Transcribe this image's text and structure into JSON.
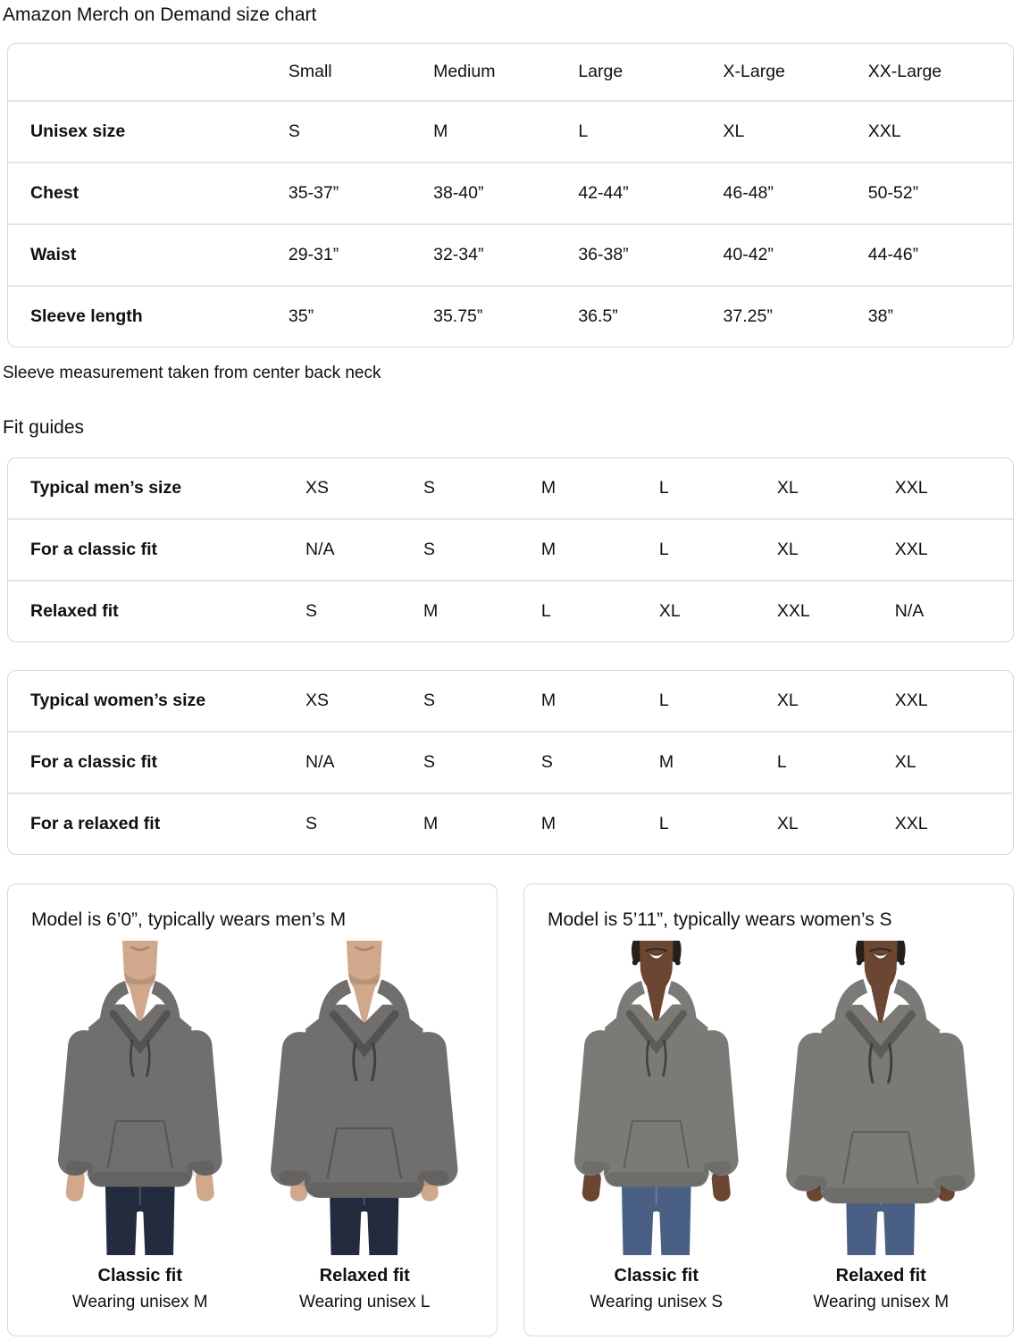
{
  "page_title": "Amazon Merch on Demand size chart",
  "size_chart": {
    "columns": [
      "Small",
      "Medium",
      "Large",
      "X-Large",
      "XX-Large"
    ],
    "rows": [
      {
        "label": "Unisex size",
        "values": [
          "S",
          "M",
          "L",
          "XL",
          "XXL"
        ]
      },
      {
        "label": "Chest",
        "values": [
          "35-37”",
          "38-40”",
          "42-44”",
          "46-48”",
          "50-52”"
        ]
      },
      {
        "label": "Waist",
        "values": [
          "29-31”",
          "32-34”",
          "36-38”",
          "40-42”",
          "44-46”"
        ]
      },
      {
        "label": "Sleeve length",
        "values": [
          "35”",
          "35.75”",
          "36.5”",
          "37.25”",
          "38”"
        ]
      }
    ]
  },
  "note": "Sleeve measurement taken from center back neck",
  "fit_guides_title": "Fit guides",
  "fit_tables": [
    {
      "rows": [
        {
          "label": "Typical men’s size",
          "values": [
            "XS",
            "S",
            "M",
            "L",
            "XL",
            "XXL"
          ]
        },
        {
          "label": "For a classic fit",
          "values": [
            "N/A",
            "S",
            "M",
            "L",
            "XL",
            "XXL"
          ]
        },
        {
          "label": "Relaxed fit",
          "values": [
            "S",
            "M",
            "L",
            "XL",
            "XXL",
            "N/A"
          ]
        }
      ]
    },
    {
      "rows": [
        {
          "label": "Typical women’s size",
          "values": [
            "XS",
            "S",
            "M",
            "L",
            "XL",
            "XXL"
          ]
        },
        {
          "label": "For a classic fit",
          "values": [
            "N/A",
            "S",
            "S",
            "M",
            "L",
            "XL"
          ]
        },
        {
          "label": "For a relaxed fit",
          "values": [
            "S",
            "M",
            "M",
            "L",
            "XL",
            "XXL"
          ]
        }
      ]
    }
  ],
  "model_cards": [
    {
      "header": "Model is 6’0”, typically wears men’s M",
      "models": [
        {
          "fit_label": "Classic fit",
          "wearing": "Wearing unisex M"
        },
        {
          "fit_label": "Relaxed fit",
          "wearing": "Wearing unisex L"
        }
      ]
    },
    {
      "header": "Model is 5’11”, typically wears women’s S",
      "models": [
        {
          "fit_label": "Classic fit",
          "wearing": "Wearing unisex S"
        },
        {
          "fit_label": "Relaxed fit",
          "wearing": "Wearing unisex M"
        }
      ]
    }
  ],
  "colors": {
    "text": "#0F1111",
    "table_border": "#D5D9D9",
    "row_divider": "#E7E7E7",
    "hoodie_gray": "#706F6D",
    "hoodie_gray_light": "#7C7A77",
    "jeans_dark": "#232C3E",
    "jeans_medium": "#4A5F84",
    "skin_light": "#D2A88D",
    "skin_dark": "#6B4733",
    "hair_dark": "#26201B"
  }
}
